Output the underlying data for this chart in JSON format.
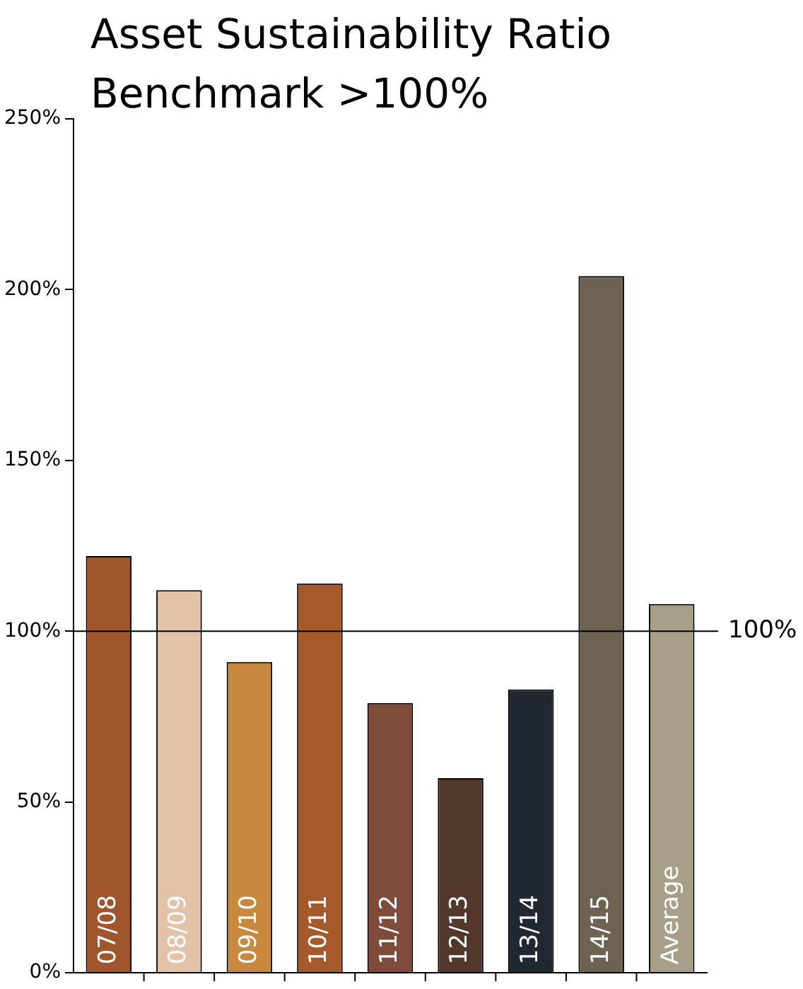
{
  "chart_data": {
    "type": "bar",
    "title": "Asset Sustainability Ratio",
    "subtitle": "Benchmark >100%",
    "categories": [
      "07/08",
      "08/09",
      "09/10",
      "10/11",
      "11/12",
      "12/13",
      "13/14",
      "14/15",
      "Average"
    ],
    "values": [
      122,
      112,
      91,
      114,
      79,
      57,
      83,
      204,
      108
    ],
    "colors": [
      "#a0552a",
      "#e3c3a8",
      "#c8883d",
      "#a65a2b",
      "#7f4b3a",
      "#53372a",
      "#222831",
      "#6e6253",
      "#a89f88"
    ],
    "ylim": [
      0,
      250
    ],
    "yticks": [
      {
        "value": 0,
        "label": "0%"
      },
      {
        "value": 50,
        "label": "50%"
      },
      {
        "value": 100,
        "label": "100%"
      },
      {
        "value": 150,
        "label": "150%"
      },
      {
        "value": 200,
        "label": "200%"
      },
      {
        "value": 250,
        "label": "250%"
      }
    ],
    "ref_lines": [
      {
        "axis": "y",
        "value": 100,
        "label": "100%",
        "color": "#000000"
      }
    ],
    "grid": false,
    "legend": false
  }
}
